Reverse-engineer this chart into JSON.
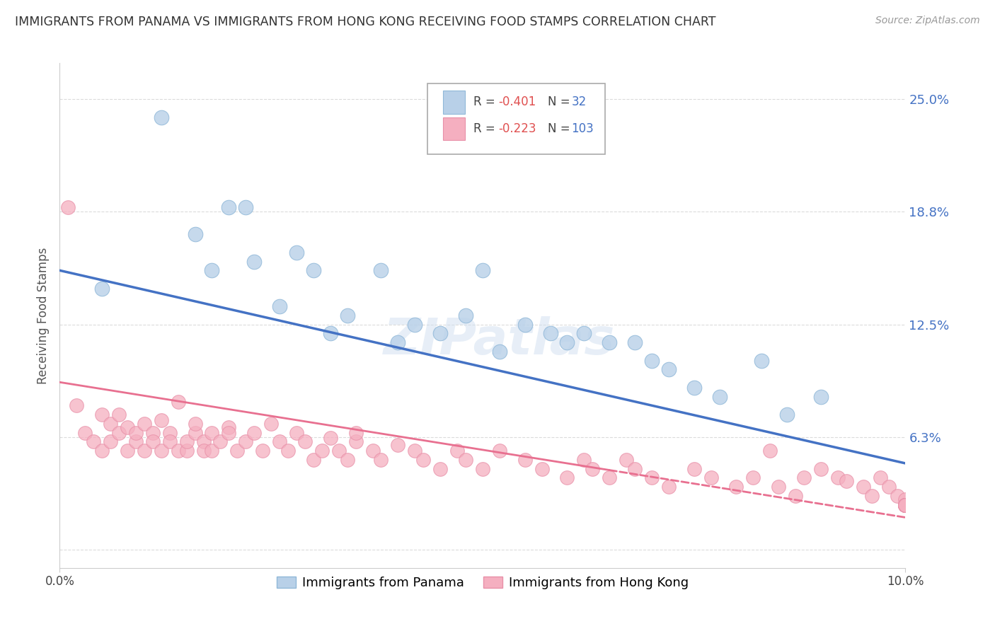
{
  "title": "IMMIGRANTS FROM PANAMA VS IMMIGRANTS FROM HONG KONG RECEIVING FOOD STAMPS CORRELATION CHART",
  "source": "Source: ZipAtlas.com",
  "ylabel": "Receiving Food Stamps",
  "ytick_positions": [
    0.0,
    0.0625,
    0.125,
    0.1875,
    0.25
  ],
  "ytick_labels": [
    "",
    "6.3%",
    "12.5%",
    "18.8%",
    "25.0%"
  ],
  "xlim": [
    0.0,
    0.1
  ],
  "ylim": [
    -0.01,
    0.27
  ],
  "watermark": "ZIPatlas",
  "legend_label1": "Immigrants from Panama",
  "legend_label2": "Immigrants from Hong Kong",
  "color_panama": "#b8d0e8",
  "color_hongkong": "#f5afc0",
  "color_panama_edge": "#90b8d8",
  "color_hongkong_edge": "#e890a8",
  "color_line_panama": "#4472c4",
  "color_line_hongkong": "#e87090",
  "panama_line_x0": 0.0,
  "panama_line_y0": 0.155,
  "panama_line_x1": 0.1,
  "panama_line_y1": 0.048,
  "hk_line_x0": 0.0,
  "hk_line_y0": 0.093,
  "hk_line_x1": 0.1,
  "hk_line_y1": 0.018,
  "panama_x": [
    0.005,
    0.012,
    0.016,
    0.018,
    0.02,
    0.022,
    0.023,
    0.026,
    0.028,
    0.03,
    0.032,
    0.034,
    0.038,
    0.04,
    0.042,
    0.045,
    0.048,
    0.05,
    0.052,
    0.055,
    0.058,
    0.06,
    0.062,
    0.065,
    0.068,
    0.07,
    0.072,
    0.075,
    0.078,
    0.083,
    0.086,
    0.09
  ],
  "panama_y": [
    0.145,
    0.24,
    0.175,
    0.155,
    0.19,
    0.19,
    0.16,
    0.135,
    0.165,
    0.155,
    0.12,
    0.13,
    0.155,
    0.115,
    0.125,
    0.12,
    0.13,
    0.155,
    0.11,
    0.125,
    0.12,
    0.115,
    0.12,
    0.115,
    0.115,
    0.105,
    0.1,
    0.09,
    0.085,
    0.105,
    0.075,
    0.085
  ],
  "hk_x": [
    0.001,
    0.002,
    0.003,
    0.004,
    0.005,
    0.005,
    0.006,
    0.006,
    0.007,
    0.007,
    0.008,
    0.008,
    0.009,
    0.009,
    0.01,
    0.01,
    0.011,
    0.011,
    0.012,
    0.012,
    0.013,
    0.013,
    0.014,
    0.014,
    0.015,
    0.015,
    0.016,
    0.016,
    0.017,
    0.017,
    0.018,
    0.018,
    0.019,
    0.02,
    0.02,
    0.021,
    0.022,
    0.023,
    0.024,
    0.025,
    0.026,
    0.027,
    0.028,
    0.029,
    0.03,
    0.031,
    0.032,
    0.033,
    0.034,
    0.035,
    0.035,
    0.037,
    0.038,
    0.04,
    0.042,
    0.043,
    0.045,
    0.047,
    0.048,
    0.05,
    0.052,
    0.055,
    0.057,
    0.06,
    0.062,
    0.063,
    0.065,
    0.067,
    0.068,
    0.07,
    0.072,
    0.075,
    0.077,
    0.08,
    0.082,
    0.084,
    0.085,
    0.087,
    0.088,
    0.09,
    0.092,
    0.093,
    0.095,
    0.096,
    0.097,
    0.098,
    0.099,
    0.1,
    0.1,
    0.1,
    0.1,
    0.1,
    0.1,
    0.1,
    0.1,
    0.1,
    0.1,
    0.1,
    0.1,
    0.1,
    0.1,
    0.1,
    0.1
  ],
  "hk_y": [
    0.19,
    0.08,
    0.065,
    0.06,
    0.055,
    0.075,
    0.06,
    0.07,
    0.075,
    0.065,
    0.055,
    0.068,
    0.06,
    0.065,
    0.055,
    0.07,
    0.065,
    0.06,
    0.072,
    0.055,
    0.065,
    0.06,
    0.082,
    0.055,
    0.055,
    0.06,
    0.065,
    0.07,
    0.06,
    0.055,
    0.055,
    0.065,
    0.06,
    0.068,
    0.065,
    0.055,
    0.06,
    0.065,
    0.055,
    0.07,
    0.06,
    0.055,
    0.065,
    0.06,
    0.05,
    0.055,
    0.062,
    0.055,
    0.05,
    0.06,
    0.065,
    0.055,
    0.05,
    0.058,
    0.055,
    0.05,
    0.045,
    0.055,
    0.05,
    0.045,
    0.055,
    0.05,
    0.045,
    0.04,
    0.05,
    0.045,
    0.04,
    0.05,
    0.045,
    0.04,
    0.035,
    0.045,
    0.04,
    0.035,
    0.04,
    0.055,
    0.035,
    0.03,
    0.04,
    0.045,
    0.04,
    0.038,
    0.035,
    0.03,
    0.04,
    0.035,
    0.03,
    0.028,
    0.025,
    0.025,
    0.025,
    0.025,
    0.025,
    0.025,
    0.025,
    0.025,
    0.025,
    0.025,
    0.025,
    0.025,
    0.025,
    0.025,
    0.025
  ]
}
